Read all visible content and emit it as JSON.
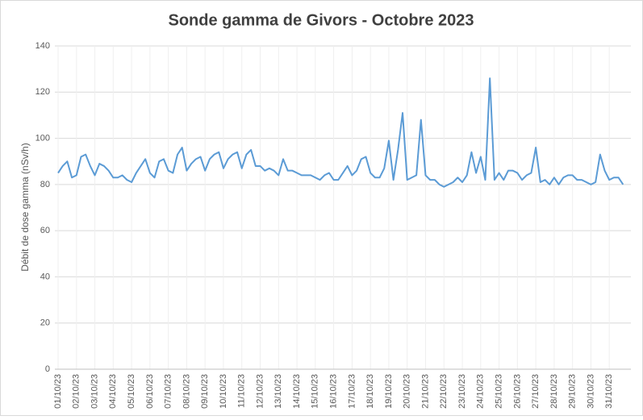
{
  "chart_data": {
    "type": "line",
    "title": "Sonde gamma de Givors - Octobre 2023",
    "ylabel": "Débit de dose gamma (nSv/h)",
    "categories": [
      "01/10/23",
      null,
      null,
      null,
      "02/10/23",
      null,
      null,
      null,
      "03/10/23",
      null,
      null,
      null,
      "04/10/23",
      null,
      null,
      null,
      "05/10/23",
      null,
      null,
      null,
      "06/10/23",
      null,
      null,
      null,
      "07/10/23",
      null,
      null,
      null,
      "08/10/23",
      null,
      null,
      null,
      "09/10/23",
      null,
      null,
      null,
      "10/10/23",
      null,
      null,
      null,
      "11/10/23",
      null,
      null,
      null,
      "12/10/23",
      null,
      null,
      null,
      "13/10/23",
      null,
      null,
      null,
      "14/10/23",
      null,
      null,
      null,
      "15/10/23",
      null,
      null,
      null,
      "16/10/23",
      null,
      null,
      null,
      "17/10/23",
      null,
      null,
      null,
      "18/10/23",
      null,
      null,
      null,
      "19/10/23",
      null,
      null,
      null,
      "20/10/23",
      null,
      null,
      null,
      "21/10/23",
      null,
      null,
      null,
      "22/10/23",
      null,
      null,
      null,
      "23/10/23",
      null,
      null,
      null,
      "24/10/23",
      null,
      null,
      null,
      "25/10/23",
      null,
      null,
      null,
      "26/10/23",
      null,
      null,
      null,
      "27/10/23",
      null,
      null,
      null,
      "28/10/23",
      null,
      null,
      null,
      "29/10/23",
      null,
      null,
      null,
      "30/10/23",
      null,
      null,
      null,
      "31/10/23",
      null,
      null,
      null
    ],
    "series": [
      {
        "color": "#5b9bd5",
        "values": [
          85,
          88,
          90,
          83,
          84,
          92,
          93,
          88,
          84,
          89,
          88,
          86,
          83,
          83,
          84,
          82,
          81,
          85,
          88,
          91,
          85,
          83,
          90,
          91,
          86,
          85,
          93,
          96,
          86,
          89,
          91,
          92,
          86,
          91,
          93,
          94,
          87,
          91,
          93,
          94,
          87,
          93,
          95,
          88,
          88,
          86,
          87,
          86,
          84,
          91,
          86,
          86,
          85,
          84,
          84,
          84,
          83,
          82,
          84,
          85,
          82,
          82,
          85,
          88,
          84,
          86,
          91,
          92,
          85,
          83,
          83,
          87,
          99,
          82,
          95,
          111,
          82,
          83,
          84,
          108,
          84,
          82,
          82,
          80,
          79,
          80,
          81,
          83,
          81,
          84,
          94,
          85,
          92,
          82,
          126,
          82,
          85,
          82,
          86,
          86,
          85,
          82,
          84,
          85,
          96,
          81,
          82,
          80,
          83,
          80,
          83,
          84,
          84,
          82,
          82,
          81,
          80,
          81,
          93,
          86,
          82,
          83,
          83,
          80
        ]
      }
    ],
    "ylim": [
      0,
      140
    ],
    "yticks": [
      0,
      20,
      40,
      60,
      80,
      100,
      120,
      140
    ],
    "grid": true
  }
}
